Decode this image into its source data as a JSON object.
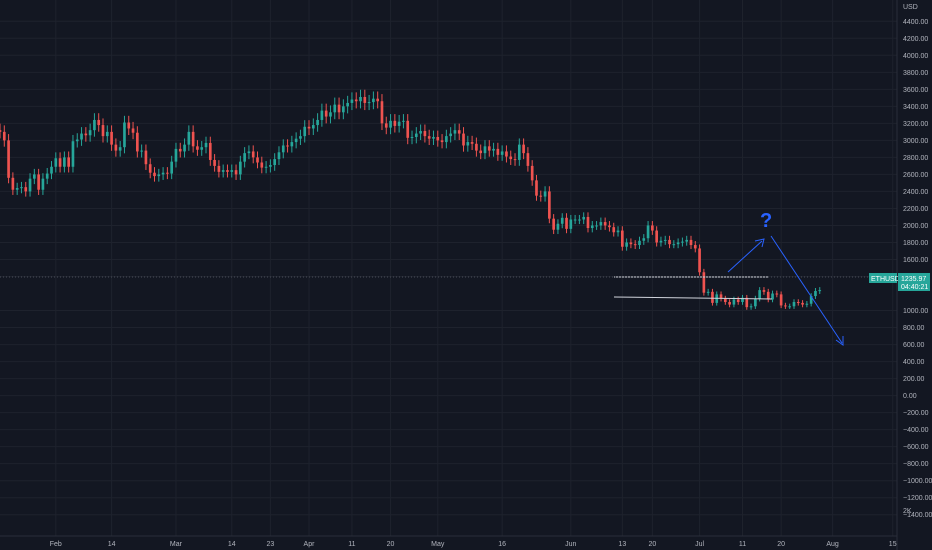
{
  "colors": {
    "background": "#131722",
    "grid": "#1e222d",
    "up": "#26a69a",
    "down": "#ef5350",
    "axis_text": "#b2b5be",
    "drawing": "#2962ff",
    "channel": "#d1d4dc"
  },
  "chart_data": {
    "type": "candlestick",
    "symbol": "ETHUSD",
    "currency": "USD",
    "last_price_label": "1235.97",
    "countdown_label": "04:40:21",
    "ylim": [
      -1650,
      4650
    ],
    "y_ticks": [
      4400,
      4200,
      4000,
      3800,
      3600,
      3400,
      3200,
      3000,
      2800,
      2600,
      2400,
      2200,
      2000,
      1800,
      1600,
      1400,
      1000,
      800,
      600,
      400,
      200,
      0,
      -200,
      -400,
      -600,
      -800,
      -1000,
      -1200,
      -1400
    ],
    "y_tick_labels": [
      "4400.00",
      "4200.00",
      "4000.00",
      "3800.00",
      "3600.00",
      "3400.00",
      "3200.00",
      "3000.00",
      "2800.00",
      "2600.00",
      "2400.00",
      "2200.00",
      "2000.00",
      "1800.00",
      "1600.00",
      "1400.00",
      "1000.00",
      "800.00",
      "600.00",
      "400.00",
      "200.00",
      "0.00",
      "−200.00",
      "−400.00",
      "−600.00",
      "−800.00",
      "−1000.00",
      "−1200.00",
      "−1400.00"
    ],
    "y_axis_extra_label": "2K",
    "x_range": [
      "2022-01-19",
      "2022-08-16"
    ],
    "x_ticks": [
      {
        "date": "2022-02-01",
        "label": "Feb"
      },
      {
        "date": "2022-02-14",
        "label": "14"
      },
      {
        "date": "2022-03-01",
        "label": "Mar"
      },
      {
        "date": "2022-03-14",
        "label": "14"
      },
      {
        "date": "2022-03-23",
        "label": "23"
      },
      {
        "date": "2022-04-01",
        "label": "Apr"
      },
      {
        "date": "2022-04-11",
        "label": "11"
      },
      {
        "date": "2022-04-20",
        "label": "20"
      },
      {
        "date": "2022-05-01",
        "label": "May"
      },
      {
        "date": "2022-05-16",
        "label": "16"
      },
      {
        "date": "2022-06-01",
        "label": "Jun"
      },
      {
        "date": "2022-06-13",
        "label": "13"
      },
      {
        "date": "2022-06-20",
        "label": "20"
      },
      {
        "date": "2022-07-01",
        "label": "Jul"
      },
      {
        "date": "2022-07-11",
        "label": "11"
      },
      {
        "date": "2022-07-20",
        "label": "20"
      },
      {
        "date": "2022-08-01",
        "label": "Aug"
      },
      {
        "date": "2022-08-15",
        "label": "15"
      }
    ],
    "start_date": "2022-01-19",
    "close": [
      3100,
      3000,
      2560,
      2420,
      2440,
      2450,
      2400,
      2550,
      2600,
      2420,
      2550,
      2610,
      2690,
      2790,
      2690,
      2800,
      2690,
      2990,
      3010,
      3080,
      3060,
      3120,
      3240,
      3180,
      3050,
      3100,
      2950,
      2880,
      2920,
      3210,
      3140,
      3090,
      2870,
      2880,
      2720,
      2620,
      2580,
      2600,
      2620,
      2610,
      2750,
      2900,
      2870,
      2950,
      3100,
      2930,
      2890,
      2920,
      2970,
      2770,
      2700,
      2630,
      2650,
      2630,
      2650,
      2600,
      2750,
      2850,
      2870,
      2800,
      2740,
      2680,
      2690,
      2710,
      2780,
      2860,
      2940,
      2930,
      2980,
      3020,
      3050,
      3160,
      3140,
      3180,
      3240,
      3350,
      3280,
      3330,
      3420,
      3330,
      3400,
      3440,
      3480,
      3460,
      3510,
      3440,
      3450,
      3490,
      3460,
      3200,
      3150,
      3230,
      3170,
      3220,
      3230,
      3030,
      3040,
      3080,
      3110,
      3050,
      3020,
      3040,
      3000,
      2980,
      3050,
      3080,
      3120,
      3080,
      2940,
      2980,
      2960,
      2880,
      2850,
      2930,
      2880,
      2900,
      2830,
      2870,
      2810,
      2780,
      2770,
      2950,
      2850,
      2700,
      2530,
      2350,
      2340,
      2400,
      2080,
      1950,
      2020,
      2090,
      1960,
      2070,
      2070,
      2070,
      2100,
      1970,
      2000,
      2000,
      2040,
      2000,
      1980,
      1920,
      1940,
      1750,
      1800,
      1780,
      1770,
      1820,
      1850,
      2000,
      1940,
      1800,
      1820,
      1830,
      1780,
      1780,
      1800,
      1810,
      1830,
      1770,
      1730,
      1450,
      1210,
      1220,
      1090,
      1190,
      1140,
      1100,
      1070,
      1130,
      1100,
      1150,
      1040,
      1050,
      1140,
      1240,
      1220,
      1130,
      1200,
      1190,
      1060,
      1050,
      1050,
      1100,
      1090,
      1070,
      1080,
      1170,
      1230,
      1240
    ]
  },
  "drawings": {
    "question_mark": "?"
  }
}
